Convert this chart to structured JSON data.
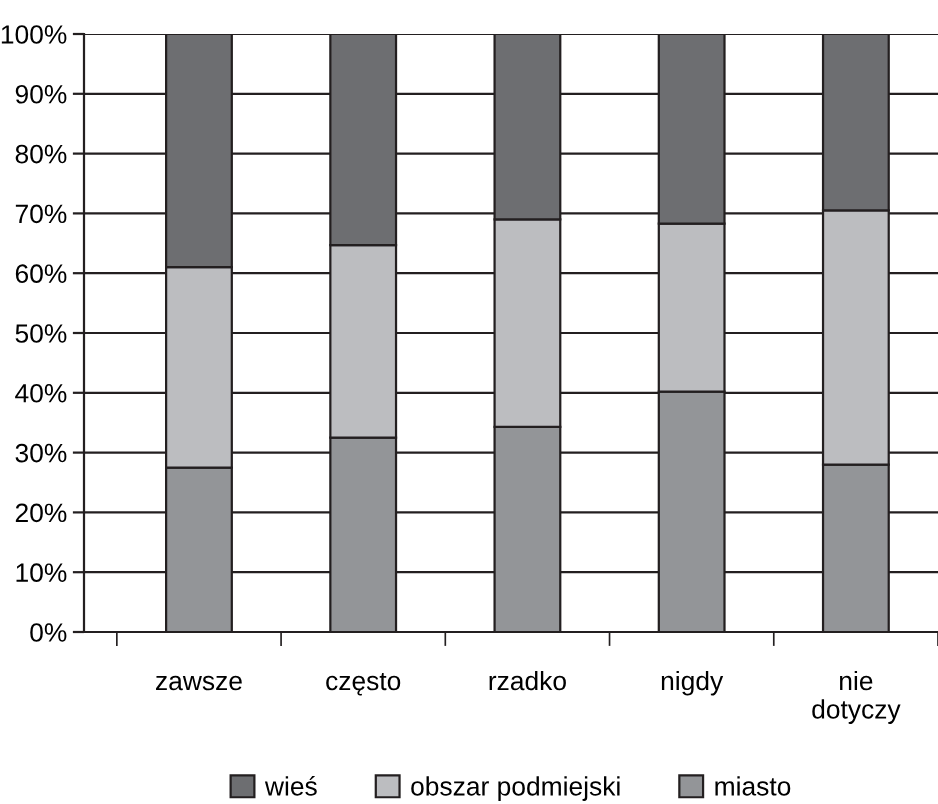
{
  "chart_data": {
    "type": "bar",
    "stacked": true,
    "categories": [
      "zawsze",
      "często",
      "rzadko",
      "nigdy",
      "nie\ndotyczy"
    ],
    "series": [
      {
        "name": "miasto",
        "color": "#939598",
        "values": [
          27.5,
          32.5,
          34.3,
          40.2,
          28
        ]
      },
      {
        "name": "obszar podmiejski",
        "color": "#bcbdc0",
        "values": [
          33.5,
          32.2,
          34.7,
          28.1,
          42.5
        ]
      },
      {
        "name": "wieś",
        "color": "#6d6e71",
        "values": [
          39,
          35.3,
          31,
          31.7,
          29.5
        ]
      }
    ],
    "ylim": [
      0,
      100
    ],
    "yticks": [
      {
        "value": 0,
        "label": "0%"
      },
      {
        "value": 10,
        "label": "10%"
      },
      {
        "value": 20,
        "label": "20%"
      },
      {
        "value": 30,
        "label": "30%"
      },
      {
        "value": 40,
        "label": "40%"
      },
      {
        "value": 50,
        "label": "50%"
      },
      {
        "value": 60,
        "label": "60%"
      },
      {
        "value": 70,
        "label": "70%"
      },
      {
        "value": 80,
        "label": "80%"
      },
      {
        "value": 90,
        "label": "90%"
      },
      {
        "value": 100,
        "label": "100%"
      }
    ],
    "grid": "y",
    "legend": "bottom"
  }
}
